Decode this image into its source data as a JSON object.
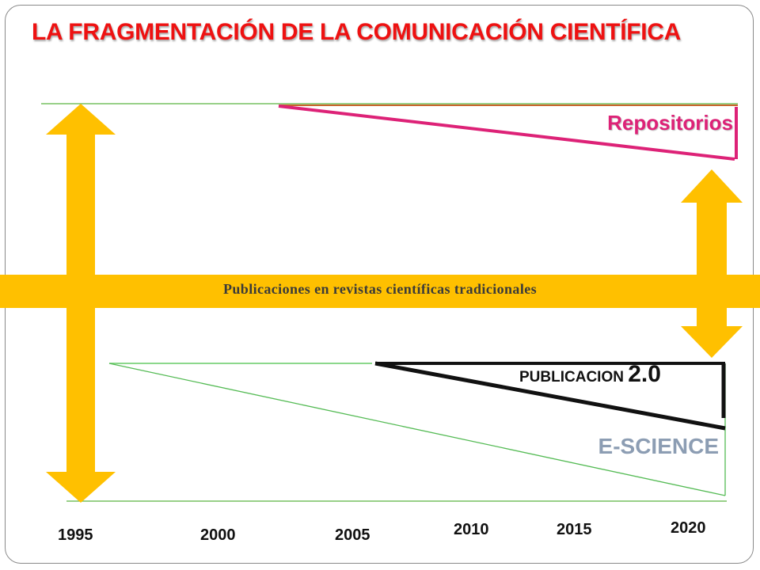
{
  "title": "LA FRAGMENTACIÓN DE LA COMUNICACIÓN CIENTÍFICA",
  "band_label": "Publicaciones en revistas científicas tradicionales",
  "labels": {
    "repositorios": "Repositorios",
    "publicacion_text": "PUBLICACION ",
    "publicacion_version": "2.0",
    "escience": "E-SCIENCE"
  },
  "years": [
    "1995",
    "2000",
    "2005",
    "2010",
    "2015",
    "2020"
  ],
  "colors": {
    "title": "#ee1111",
    "band": "#ffc000",
    "repositorios": "#dd2277",
    "escience": "#8c9db3",
    "green_line": "#55bb55"
  }
}
